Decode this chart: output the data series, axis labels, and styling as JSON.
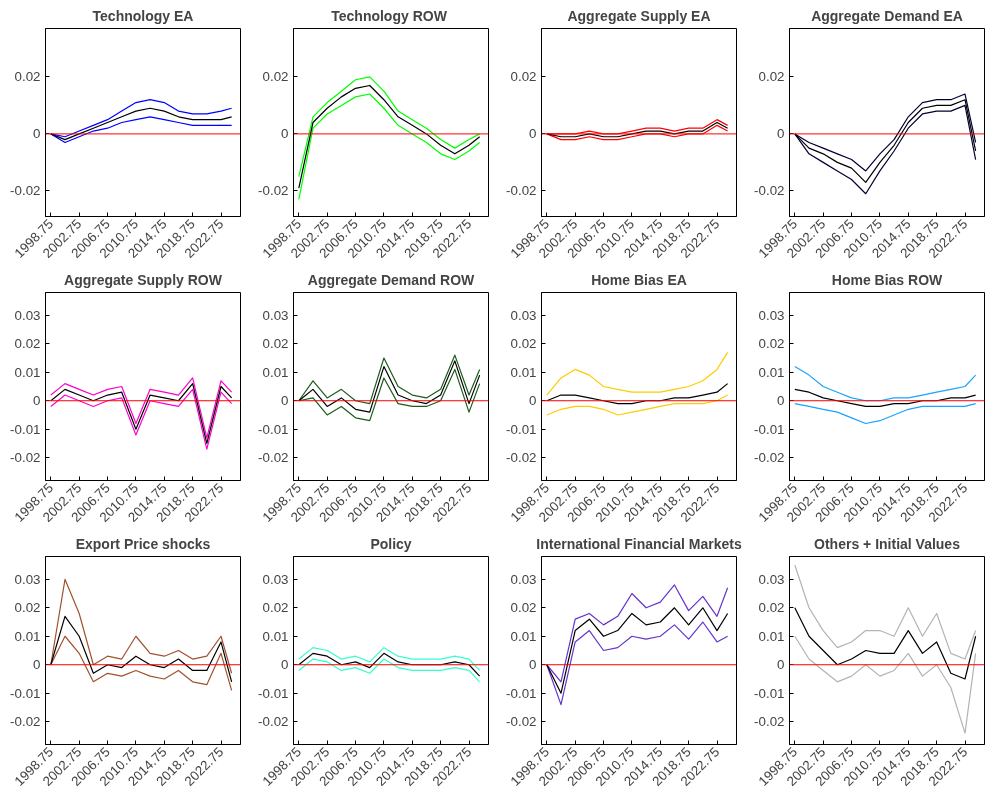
{
  "chart_data": [
    {
      "type": "line",
      "title": "Technology EA",
      "x": [
        1998.75,
        2000.75,
        2002.75,
        2004.75,
        2006.75,
        2008.75,
        2010.75,
        2012.75,
        2014.75,
        2016.75,
        2018.75,
        2020.75,
        2022.75,
        2024.25
      ],
      "xlim": [
        1998,
        2025.5
      ],
      "ylim": [
        -0.029,
        0.037
      ],
      "xticks": [
        1998.75,
        2002.75,
        2006.75,
        2010.75,
        2014.75,
        2018.75,
        2022.75
      ],
      "yticks": [
        -0.02,
        0,
        0.02
      ],
      "grid": false,
      "ref_lines": [
        {
          "axis": "y",
          "value": 0,
          "color": "#ff0000"
        }
      ],
      "series": [
        {
          "color": "#0000ff",
          "values": [
            0,
            -0.003,
            -0.001,
            0.001,
            0.002,
            0.004,
            0.005,
            0.006,
            0.005,
            0.004,
            0.003,
            0.003,
            0.003,
            0.003
          ]
        },
        {
          "color": "#0000ff",
          "values": [
            0,
            -0.001,
            0.001,
            0.003,
            0.005,
            0.008,
            0.011,
            0.012,
            0.011,
            0.008,
            0.007,
            0.007,
            0.008,
            0.009
          ]
        },
        {
          "color": "#000000",
          "values": [
            0,
            -0.002,
            0,
            0.002,
            0.004,
            0.006,
            0.008,
            0.009,
            0.008,
            0.006,
            0.005,
            0.005,
            0.005,
            0.006
          ]
        }
      ]
    },
    {
      "type": "line",
      "title": "Technology  ROW",
      "x": [
        1998.75,
        2000.75,
        2002.75,
        2004.75,
        2006.75,
        2008.75,
        2010.75,
        2012.75,
        2014.75,
        2016.75,
        2018.75,
        2020.75,
        2022.75,
        2024.25
      ],
      "xlim": [
        1998,
        2025.5
      ],
      "ylim": [
        -0.029,
        0.037
      ],
      "xticks": [
        1998.75,
        2002.75,
        2006.75,
        2010.75,
        2014.75,
        2018.75,
        2022.75
      ],
      "yticks": [
        -0.02,
        0,
        0.02
      ],
      "grid": false,
      "ref_lines": [
        {
          "axis": "y",
          "value": 0,
          "color": "#ff0000"
        }
      ],
      "series": [
        {
          "color": "#00ff00",
          "values": [
            -0.023,
            0.002,
            0.007,
            0.01,
            0.013,
            0.014,
            0.009,
            0.003,
            0,
            -0.003,
            -0.007,
            -0.009,
            -0.006,
            -0.003
          ]
        },
        {
          "color": "#00ff00",
          "values": [
            -0.015,
            0.006,
            0.011,
            0.015,
            0.019,
            0.02,
            0.015,
            0.008,
            0.005,
            0.002,
            -0.002,
            -0.005,
            -0.002,
            0
          ]
        },
        {
          "color": "#000000",
          "values": [
            -0.019,
            0.004,
            0.009,
            0.013,
            0.016,
            0.017,
            0.012,
            0.006,
            0.003,
            0,
            -0.004,
            -0.007,
            -0.004,
            -0.001
          ]
        }
      ]
    },
    {
      "type": "line",
      "title": "Aggregate Supply EA",
      "x": [
        1998.75,
        2000.75,
        2002.75,
        2004.75,
        2006.75,
        2008.75,
        2010.75,
        2012.75,
        2014.75,
        2016.75,
        2018.75,
        2020.75,
        2022.75,
        2024.25
      ],
      "xlim": [
        1998,
        2025.5
      ],
      "ylim": [
        -0.029,
        0.037
      ],
      "xticks": [
        1998.75,
        2002.75,
        2006.75,
        2010.75,
        2014.75,
        2018.75,
        2022.75
      ],
      "yticks": [
        -0.02,
        0,
        0.02
      ],
      "grid": false,
      "ref_lines": [
        {
          "axis": "y",
          "value": 0,
          "color": "#ff0000"
        }
      ],
      "series": [
        {
          "color": "#ff0000",
          "values": [
            0,
            -0.002,
            -0.002,
            -0.001,
            -0.002,
            -0.002,
            -0.001,
            0,
            0,
            -0.001,
            0,
            0,
            0.003,
            0.001
          ]
        },
        {
          "color": "#ff0000",
          "values": [
            0,
            0,
            0,
            0.001,
            0,
            0,
            0.001,
            0.002,
            0.002,
            0.001,
            0.002,
            0.002,
            0.005,
            0.003
          ]
        },
        {
          "color": "#000000",
          "values": [
            0,
            -0.001,
            -0.001,
            0,
            -0.001,
            -0.001,
            0,
            0.001,
            0.001,
            0,
            0.001,
            0.001,
            0.004,
            0.002
          ]
        }
      ]
    },
    {
      "type": "line",
      "title": "Aggregate Demand EA",
      "x": [
        1998.75,
        2000.75,
        2002.75,
        2004.75,
        2006.75,
        2008.75,
        2010.75,
        2012.75,
        2014.75,
        2016.75,
        2018.75,
        2020.75,
        2022.75,
        2024.25
      ],
      "xlim": [
        1998,
        2025.5
      ],
      "ylim": [
        -0.029,
        0.037
      ],
      "xticks": [
        1998.75,
        2002.75,
        2006.75,
        2010.75,
        2014.75,
        2018.75,
        2022.75
      ],
      "yticks": [
        -0.02,
        0,
        0.02
      ],
      "grid": false,
      "ref_lines": [
        {
          "axis": "y",
          "value": 0,
          "color": "#ff0000"
        }
      ],
      "series": [
        {
          "color": "#000033",
          "values": [
            0,
            -0.007,
            -0.01,
            -0.013,
            -0.016,
            -0.021,
            -0.013,
            -0.006,
            0.002,
            0.007,
            0.008,
            0.008,
            0.01,
            -0.009
          ]
        },
        {
          "color": "#000033",
          "values": [
            0,
            -0.003,
            -0.005,
            -0.007,
            -0.009,
            -0.013,
            -0.007,
            -0.002,
            0.006,
            0.011,
            0.012,
            0.012,
            0.014,
            -0.003
          ]
        },
        {
          "color": "#000000",
          "values": [
            0,
            -0.005,
            -0.007,
            -0.01,
            -0.012,
            -0.017,
            -0.01,
            -0.004,
            0.004,
            0.009,
            0.01,
            0.01,
            0.012,
            -0.006
          ]
        }
      ]
    },
    {
      "type": "line",
      "title": "Aggregate Supply ROW",
      "x": [
        1998.75,
        2000.75,
        2002.75,
        2004.75,
        2006.75,
        2008.75,
        2010.75,
        2012.75,
        2014.75,
        2016.75,
        2018.75,
        2020.75,
        2022.75,
        2024.25
      ],
      "xlim": [
        1998,
        2025.5
      ],
      "ylim": [
        -0.028,
        0.038
      ],
      "xticks": [
        1998.75,
        2002.75,
        2006.75,
        2010.75,
        2014.75,
        2018.75,
        2022.75
      ],
      "yticks": [
        -0.02,
        -0.01,
        0,
        0.01,
        0.02,
        0.03
      ],
      "grid": false,
      "ref_lines": [
        {
          "axis": "y",
          "value": 0,
          "color": "#ff0000"
        }
      ],
      "series": [
        {
          "color": "#ff00cc",
          "values": [
            -0.002,
            0.002,
            0,
            -0.002,
            0,
            0.001,
            -0.012,
            0,
            -0.001,
            -0.002,
            0.004,
            -0.017,
            0.003,
            -0.001
          ]
        },
        {
          "color": "#ff00cc",
          "values": [
            0.002,
            0.006,
            0.004,
            0.002,
            0.004,
            0.005,
            -0.008,
            0.004,
            0.003,
            0.002,
            0.008,
            -0.013,
            0.007,
            0.003
          ]
        },
        {
          "color": "#000000",
          "values": [
            0,
            0.004,
            0.002,
            0,
            0.002,
            0.003,
            -0.01,
            0.002,
            0.001,
            0,
            0.006,
            -0.015,
            0.005,
            0.001
          ]
        }
      ]
    },
    {
      "type": "line",
      "title": "Aggregate Demand ROW",
      "x": [
        1998.75,
        2000.75,
        2002.75,
        2004.75,
        2006.75,
        2008.75,
        2010.75,
        2012.75,
        2014.75,
        2016.75,
        2018.75,
        2020.75,
        2022.75,
        2024.25
      ],
      "xlim": [
        1998,
        2025.5
      ],
      "ylim": [
        -0.028,
        0.038
      ],
      "xticks": [
        1998.75,
        2002.75,
        2006.75,
        2010.75,
        2014.75,
        2018.75,
        2022.75
      ],
      "yticks": [
        -0.02,
        -0.01,
        0,
        0.01,
        0.02,
        0.03
      ],
      "grid": false,
      "ref_lines": [
        {
          "axis": "y",
          "value": 0,
          "color": "#ff0000"
        }
      ],
      "series": [
        {
          "color": "#1a5c1a",
          "values": [
            0,
            0.001,
            -0.005,
            -0.002,
            -0.006,
            -0.007,
            0.008,
            -0.001,
            -0.002,
            -0.002,
            0,
            0.011,
            -0.004,
            0.006
          ]
        },
        {
          "color": "#1a5c1a",
          "values": [
            0,
            0.007,
            0.001,
            0.004,
            0,
            -0.001,
            0.015,
            0.005,
            0.002,
            0.001,
            0.004,
            0.016,
            0.002,
            0.011
          ]
        },
        {
          "color": "#000000",
          "values": [
            0,
            0.004,
            -0.002,
            0.001,
            -0.003,
            -0.004,
            0.012,
            0.002,
            0,
            -0.001,
            0.002,
            0.014,
            -0.001,
            0.009
          ]
        }
      ]
    },
    {
      "type": "line",
      "title": "Home Bias EA",
      "x": [
        1998.75,
        2000.75,
        2002.75,
        2004.75,
        2006.75,
        2008.75,
        2010.75,
        2012.75,
        2014.75,
        2016.75,
        2018.75,
        2020.75,
        2022.75,
        2024.25
      ],
      "xlim": [
        1998,
        2025.5
      ],
      "ylim": [
        -0.028,
        0.038
      ],
      "xticks": [
        1998.75,
        2002.75,
        2006.75,
        2010.75,
        2014.75,
        2018.75,
        2022.75
      ],
      "yticks": [
        -0.02,
        -0.01,
        0,
        0.01,
        0.02,
        0.03
      ],
      "grid": false,
      "ref_lines": [
        {
          "axis": "y",
          "value": 0,
          "color": "#ff0000"
        }
      ],
      "series": [
        {
          "color": "#ffcc00",
          "values": [
            -0.005,
            -0.003,
            -0.002,
            -0.002,
            -0.003,
            -0.005,
            -0.004,
            -0.003,
            -0.002,
            -0.001,
            -0.001,
            -0.001,
            0,
            0.002
          ]
        },
        {
          "color": "#ffcc00",
          "values": [
            0.002,
            0.008,
            0.011,
            0.009,
            0.005,
            0.004,
            0.003,
            0.003,
            0.003,
            0.004,
            0.005,
            0.007,
            0.011,
            0.017
          ]
        },
        {
          "color": "#000000",
          "values": [
            0,
            0.002,
            0.002,
            0.001,
            0,
            -0.001,
            -0.001,
            0,
            0,
            0.001,
            0.001,
            0.002,
            0.003,
            0.006
          ]
        }
      ]
    },
    {
      "type": "line",
      "title": "Home Bias ROW",
      "x": [
        1998.75,
        2000.75,
        2002.75,
        2004.75,
        2006.75,
        2008.75,
        2010.75,
        2012.75,
        2014.75,
        2016.75,
        2018.75,
        2020.75,
        2022.75,
        2024.25
      ],
      "xlim": [
        1998,
        2025.5
      ],
      "ylim": [
        -0.028,
        0.038
      ],
      "xticks": [
        1998.75,
        2002.75,
        2006.75,
        2010.75,
        2014.75,
        2018.75,
        2022.75
      ],
      "yticks": [
        -0.02,
        -0.01,
        0,
        0.01,
        0.02,
        0.03
      ],
      "grid": false,
      "ref_lines": [
        {
          "axis": "y",
          "value": 0,
          "color": "#ff0000"
        }
      ],
      "series": [
        {
          "color": "#1aa3ff",
          "values": [
            -0.001,
            -0.002,
            -0.003,
            -0.004,
            -0.006,
            -0.008,
            -0.007,
            -0.005,
            -0.003,
            -0.002,
            -0.002,
            -0.002,
            -0.002,
            -0.001
          ]
        },
        {
          "color": "#1aa3ff",
          "values": [
            0.012,
            0.009,
            0.005,
            0.003,
            0.001,
            0,
            0,
            0.001,
            0.001,
            0.002,
            0.003,
            0.004,
            0.005,
            0.009
          ]
        },
        {
          "color": "#000000",
          "values": [
            0.004,
            0.003,
            0.001,
            0,
            -0.001,
            -0.002,
            -0.002,
            -0.001,
            -0.001,
            0,
            0,
            0.001,
            0.001,
            0.002
          ]
        }
      ]
    },
    {
      "type": "line",
      "title": "Export Price shocks",
      "x": [
        1998.75,
        2000.75,
        2002.75,
        2004.75,
        2006.75,
        2008.75,
        2010.75,
        2012.75,
        2014.75,
        2016.75,
        2018.75,
        2020.75,
        2022.75,
        2024.25
      ],
      "xlim": [
        1998,
        2025.5
      ],
      "ylim": [
        -0.028,
        0.038
      ],
      "xticks": [
        1998.75,
        2002.75,
        2006.75,
        2010.75,
        2014.75,
        2018.75,
        2022.75
      ],
      "yticks": [
        -0.02,
        -0.01,
        0,
        0.01,
        0.02,
        0.03
      ],
      "grid": false,
      "ref_lines": [
        {
          "axis": "y",
          "value": 0,
          "color": "#ff0000"
        }
      ],
      "series": [
        {
          "color": "#a0522d",
          "values": [
            0,
            0.01,
            0.004,
            -0.006,
            -0.003,
            -0.004,
            -0.002,
            -0.004,
            -0.005,
            -0.002,
            -0.006,
            -0.007,
            0.004,
            -0.009
          ]
        },
        {
          "color": "#a0522d",
          "values": [
            0,
            0.03,
            0.018,
            0,
            0.003,
            0.002,
            0.01,
            0.004,
            0.003,
            0.005,
            0.002,
            0.003,
            0.01,
            -0.003
          ]
        },
        {
          "color": "#000000",
          "values": [
            0,
            0.017,
            0.01,
            -0.003,
            0,
            -0.001,
            0.003,
            0,
            -0.001,
            0.002,
            -0.002,
            -0.002,
            0.008,
            -0.006
          ]
        }
      ]
    },
    {
      "type": "line",
      "title": "Policy",
      "x": [
        1998.75,
        2000.75,
        2002.75,
        2004.75,
        2006.75,
        2008.75,
        2010.75,
        2012.75,
        2014.75,
        2016.75,
        2018.75,
        2020.75,
        2022.75,
        2024.25
      ],
      "xlim": [
        1998,
        2025.5
      ],
      "ylim": [
        -0.028,
        0.038
      ],
      "xticks": [
        1998.75,
        2002.75,
        2006.75,
        2010.75,
        2014.75,
        2018.75,
        2022.75
      ],
      "yticks": [
        -0.02,
        -0.01,
        0,
        0.01,
        0.02,
        0.03
      ],
      "grid": false,
      "ref_lines": [
        {
          "axis": "y",
          "value": 0,
          "color": "#ff0000"
        }
      ],
      "series": [
        {
          "color": "#33ffcc",
          "values": [
            -0.002,
            0.002,
            0.001,
            -0.002,
            -0.001,
            -0.003,
            0.002,
            -0.001,
            -0.002,
            -0.002,
            -0.002,
            -0.001,
            -0.002,
            -0.006
          ]
        },
        {
          "color": "#33ffcc",
          "values": [
            0.002,
            0.006,
            0.005,
            0.002,
            0.003,
            0.001,
            0.006,
            0.003,
            0.002,
            0.002,
            0.002,
            0.003,
            0.002,
            -0.002
          ]
        },
        {
          "color": "#000000",
          "values": [
            0,
            0.004,
            0.003,
            0,
            0.001,
            -0.001,
            0.004,
            0.001,
            0,
            0,
            0,
            0.001,
            0,
            -0.004
          ]
        }
      ]
    },
    {
      "type": "line",
      "title": "International Financial Markets",
      "x": [
        1998.75,
        2000.75,
        2002.75,
        2004.75,
        2006.75,
        2008.75,
        2010.75,
        2012.75,
        2014.75,
        2016.75,
        2018.75,
        2020.75,
        2022.75,
        2024.25
      ],
      "xlim": [
        1998,
        2025.5
      ],
      "ylim": [
        -0.028,
        0.038
      ],
      "xticks": [
        1998.75,
        2002.75,
        2006.75,
        2010.75,
        2014.75,
        2018.75,
        2022.75
      ],
      "yticks": [
        -0.02,
        -0.01,
        0,
        0.01,
        0.02,
        0.03
      ],
      "grid": false,
      "ref_lines": [
        {
          "axis": "y",
          "value": 0,
          "color": "#ff0000"
        }
      ],
      "series": [
        {
          "color": "#6633cc",
          "values": [
            0,
            -0.014,
            0.008,
            0.012,
            0.005,
            0.006,
            0.01,
            0.009,
            0.01,
            0.014,
            0.009,
            0.015,
            0.008,
            0.01
          ]
        },
        {
          "color": "#6633cc",
          "values": [
            0,
            -0.006,
            0.016,
            0.018,
            0.014,
            0.017,
            0.025,
            0.02,
            0.022,
            0.028,
            0.019,
            0.024,
            0.017,
            0.027
          ]
        },
        {
          "color": "#000000",
          "values": [
            0,
            -0.01,
            0.012,
            0.016,
            0.01,
            0.012,
            0.018,
            0.014,
            0.015,
            0.02,
            0.014,
            0.02,
            0.012,
            0.018
          ]
        }
      ]
    },
    {
      "type": "line",
      "title": "Others + Initial Values",
      "x": [
        1998.75,
        2000.75,
        2002.75,
        2004.75,
        2006.75,
        2008.75,
        2010.75,
        2012.75,
        2014.75,
        2016.75,
        2018.75,
        2020.75,
        2022.75,
        2024.25
      ],
      "xlim": [
        1998,
        2025.5
      ],
      "ylim": [
        -0.028,
        0.038
      ],
      "xticks": [
        1998.75,
        2002.75,
        2006.75,
        2010.75,
        2014.75,
        2018.75,
        2022.75
      ],
      "yticks": [
        -0.02,
        -0.01,
        0,
        0.01,
        0.02,
        0.03
      ],
      "grid": false,
      "ref_lines": [
        {
          "axis": "y",
          "value": 0,
          "color": "#ff0000"
        }
      ],
      "series": [
        {
          "color": "#b3b3b3",
          "values": [
            0.01,
            0.002,
            -0.002,
            -0.006,
            -0.004,
            0,
            -0.004,
            -0.002,
            0.004,
            -0.004,
            0,
            -0.008,
            -0.024,
            0.004
          ]
        },
        {
          "color": "#b3b3b3",
          "values": [
            0.035,
            0.02,
            0.012,
            0.006,
            0.008,
            0.012,
            0.012,
            0.01,
            0.02,
            0.01,
            0.018,
            0.004,
            0.002,
            0.012
          ]
        },
        {
          "color": "#000000",
          "values": [
            0.02,
            0.01,
            0.005,
            0,
            0.002,
            0.005,
            0.004,
            0.004,
            0.012,
            0.004,
            0.008,
            -0.003,
            -0.005,
            0.01
          ]
        }
      ]
    }
  ]
}
